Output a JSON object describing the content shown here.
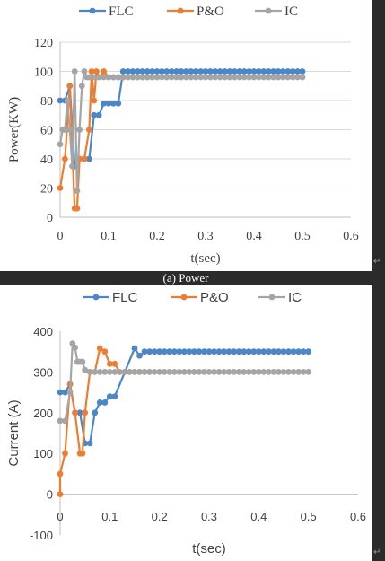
{
  "caption_a": "(a) Power",
  "chart_data": [
    {
      "type": "line",
      "xlabel": "t(sec)",
      "ylabel": "Power(KW)",
      "xlim": [
        0,
        0.6
      ],
      "ylim": [
        0,
        120
      ],
      "xticks": [
        0,
        0.1,
        0.2,
        0.3,
        0.4,
        0.5,
        0.6
      ],
      "yticks": [
        0,
        20,
        40,
        60,
        80,
        100,
        120
      ],
      "xtick_labels": [
        "0",
        "0.1",
        "0.2",
        "0.3",
        "0.4",
        "0.5",
        "0.6"
      ],
      "ytick_labels": [
        "0",
        "20",
        "40",
        "60",
        "80",
        "100",
        "120"
      ],
      "grid": true,
      "legend_position": "top",
      "series": [
        {
          "name": "FLC",
          "color": "#4a86c8",
          "x": [
            0,
            0.01,
            0.02,
            0.03,
            0.04,
            0.05,
            0.06,
            0.07,
            0.08,
            0.09,
            0.1,
            0.11,
            0.12,
            0.13,
            0.14,
            0.15,
            0.16,
            0.17,
            0.18,
            0.19,
            0.2,
            0.21,
            0.22,
            0.23,
            0.24,
            0.25,
            0.26,
            0.27,
            0.28,
            0.29,
            0.3,
            0.31,
            0.32,
            0.33,
            0.34,
            0.35,
            0.36,
            0.37,
            0.38,
            0.39,
            0.4,
            0.41,
            0.42,
            0.43,
            0.44,
            0.45,
            0.46,
            0.47,
            0.48,
            0.49,
            0.5
          ],
          "y": [
            80,
            80,
            90,
            35,
            40,
            40,
            40,
            70,
            70,
            78,
            78,
            78,
            78,
            100,
            100,
            100,
            100,
            100,
            100,
            100,
            100,
            100,
            100,
            100,
            100,
            100,
            100,
            100,
            100,
            100,
            100,
            100,
            100,
            100,
            100,
            100,
            100,
            100,
            100,
            100,
            100,
            100,
            100,
            100,
            100,
            100,
            100,
            100,
            100,
            100,
            100
          ]
        },
        {
          "name": "P&O",
          "color": "#ed7d31",
          "x": [
            0,
            0.01,
            0.02,
            0.03,
            0.035,
            0.04,
            0.05,
            0.06,
            0.065,
            0.07,
            0.075,
            0.08,
            0.09,
            0.1,
            0.11,
            0.12,
            0.13,
            0.14,
            0.15,
            0.16,
            0.17,
            0.18,
            0.19
          ],
          "y": [
            20,
            40,
            90,
            6,
            6,
            40,
            40,
            60,
            100,
            80,
            100,
            96,
            100,
            96,
            96,
            96,
            96,
            96,
            96,
            96,
            96,
            96,
            96
          ]
        },
        {
          "name": "IC",
          "color": "#a5a5a5",
          "x": [
            0,
            0.005,
            0.01,
            0.015,
            0.02,
            0.025,
            0.03,
            0.035,
            0.04,
            0.045,
            0.05,
            0.055,
            0.06,
            0.07,
            0.08,
            0.09,
            0.1,
            0.11,
            0.12,
            0.13,
            0.14,
            0.15,
            0.16,
            0.17,
            0.18,
            0.19,
            0.2,
            0.21,
            0.22,
            0.23,
            0.24,
            0.25,
            0.26,
            0.27,
            0.28,
            0.29,
            0.3,
            0.31,
            0.32,
            0.33,
            0.34,
            0.35,
            0.36,
            0.37,
            0.38,
            0.39,
            0.4,
            0.41,
            0.42,
            0.43,
            0.44,
            0.45,
            0.46,
            0.47,
            0.48,
            0.49,
            0.5
          ],
          "y": [
            50,
            60,
            60,
            80,
            60,
            35,
            100,
            18,
            60,
            90,
            100,
            96,
            96,
            96,
            96,
            96,
            96,
            96,
            96,
            96,
            96,
            96,
            96,
            96,
            96,
            96,
            96,
            96,
            96,
            96,
            96,
            96,
            96,
            96,
            96,
            96,
            96,
            96,
            96,
            96,
            96,
            96,
            96,
            96,
            96,
            96,
            96,
            96,
            96,
            96,
            96,
            96,
            96,
            96,
            96,
            96,
            96
          ]
        }
      ]
    },
    {
      "type": "line",
      "xlabel": "t(sec)",
      "ylabel": "Current (A)",
      "xlim": [
        0,
        0.6
      ],
      "ylim": [
        -100,
        400
      ],
      "xticks": [
        0,
        0.1,
        0.2,
        0.3,
        0.4,
        0.5,
        0.6
      ],
      "yticks": [
        -100,
        0,
        100,
        200,
        300,
        400
      ],
      "xtick_labels": [
        "0",
        "0.1",
        "0.2",
        "0.3",
        "0.4",
        "0.5",
        "0.6"
      ],
      "ytick_labels": [
        "-100",
        "0",
        "100",
        "200",
        "300",
        "400"
      ],
      "grid": false,
      "legend_position": "top",
      "series": [
        {
          "name": "FLC",
          "color": "#4a86c8",
          "x": [
            0,
            0.01,
            0.02,
            0.03,
            0.04,
            0.05,
            0.06,
            0.07,
            0.08,
            0.09,
            0.1,
            0.11,
            0.15,
            0.16,
            0.17,
            0.18,
            0.19,
            0.2,
            0.21,
            0.22,
            0.23,
            0.24,
            0.25,
            0.26,
            0.27,
            0.28,
            0.29,
            0.3,
            0.31,
            0.32,
            0.33,
            0.34,
            0.35,
            0.36,
            0.37,
            0.38,
            0.39,
            0.4,
            0.41,
            0.42,
            0.43,
            0.44,
            0.45,
            0.46,
            0.47,
            0.48,
            0.49,
            0.5
          ],
          "y": [
            250,
            250,
            270,
            200,
            200,
            125,
            125,
            200,
            225,
            225,
            240,
            240,
            358,
            340,
            350,
            350,
            350,
            350,
            350,
            350,
            350,
            350,
            350,
            350,
            350,
            350,
            350,
            350,
            350,
            350,
            350,
            350,
            350,
            350,
            350,
            350,
            350,
            350,
            350,
            350,
            350,
            350,
            350,
            350,
            350,
            350,
            350,
            350
          ]
        },
        {
          "name": "P&O",
          "color": "#ed7d31",
          "x": [
            0,
            0,
            0.01,
            0.02,
            0.03,
            0.04,
            0.045,
            0.05,
            0.06,
            0.07,
            0.08,
            0.09,
            0.1,
            0.11,
            0.12,
            0.13,
            0.14,
            0.15,
            0.16,
            0.17,
            0.18
          ],
          "y": [
            0,
            50,
            100,
            270,
            200,
            100,
            100,
            200,
            300,
            300,
            358,
            350,
            320,
            320,
            300,
            300,
            300,
            300,
            300,
            300,
            300
          ]
        },
        {
          "name": "IC",
          "color": "#a5a5a5",
          "x": [
            0,
            0.01,
            0.02,
            0.025,
            0.03,
            0.035,
            0.04,
            0.045,
            0.05,
            0.06,
            0.07,
            0.08,
            0.09,
            0.1,
            0.11,
            0.12,
            0.13,
            0.14,
            0.15,
            0.16,
            0.17,
            0.18,
            0.19,
            0.2,
            0.21,
            0.22,
            0.23,
            0.24,
            0.25,
            0.26,
            0.27,
            0.28,
            0.29,
            0.3,
            0.31,
            0.32,
            0.33,
            0.34,
            0.35,
            0.36,
            0.37,
            0.38,
            0.39,
            0.4,
            0.41,
            0.42,
            0.43,
            0.44,
            0.45,
            0.46,
            0.47,
            0.48,
            0.49,
            0.5
          ],
          "y": [
            180,
            180,
            250,
            370,
            360,
            325,
            325,
            325,
            305,
            300,
            300,
            300,
            300,
            300,
            300,
            300,
            300,
            300,
            300,
            300,
            300,
            300,
            300,
            300,
            300,
            300,
            300,
            300,
            300,
            300,
            300,
            300,
            300,
            300,
            300,
            300,
            300,
            300,
            300,
            300,
            300,
            300,
            300,
            300,
            300,
            300,
            300,
            300,
            300,
            300,
            300,
            300,
            300,
            300
          ]
        }
      ]
    }
  ]
}
